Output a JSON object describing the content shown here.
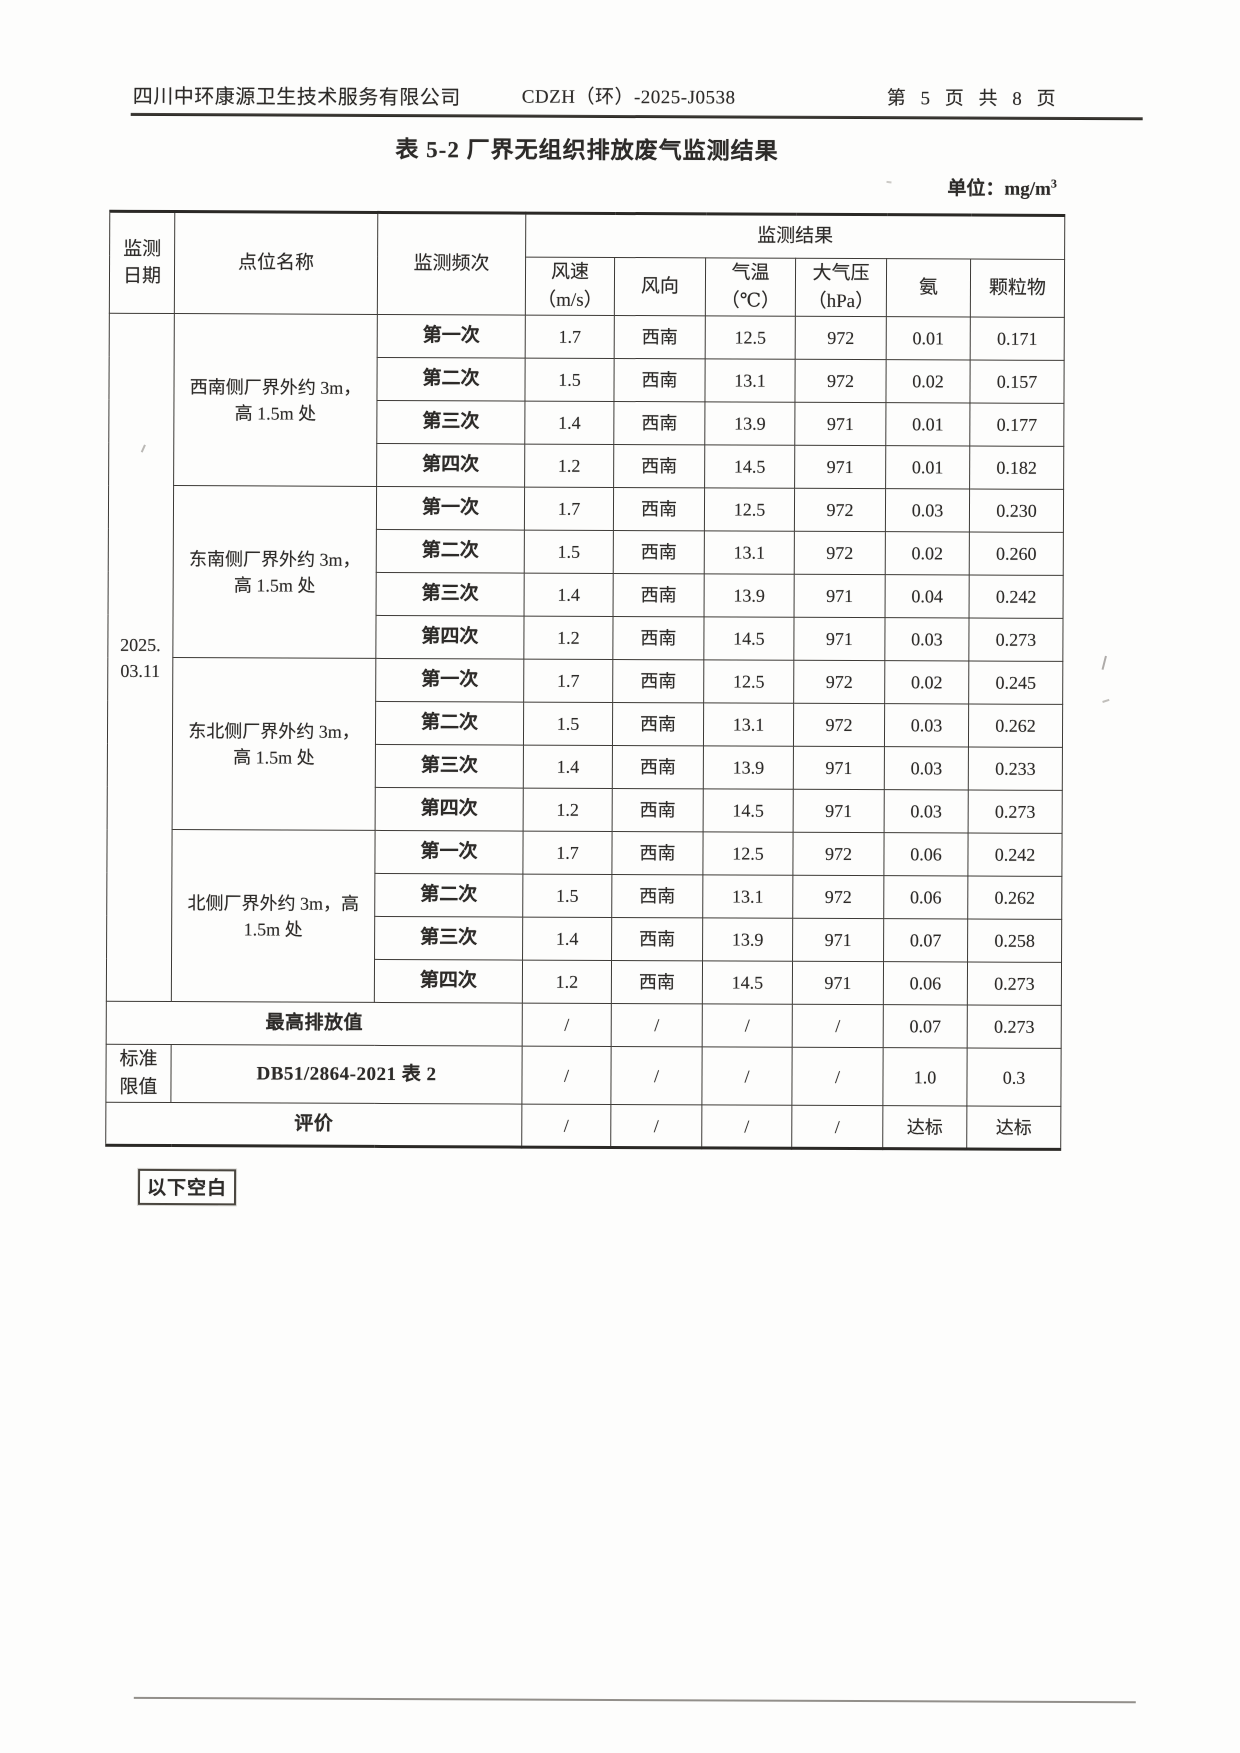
{
  "page": {
    "company": "四川中环康源卫生技术服务有限公司",
    "doc_number": "CDZH（环）-2025-J0538",
    "page_info": "第 5 页 共 8 页"
  },
  "title": "表 5-2 厂界无组织排放废气监测结果",
  "unit": {
    "label": "单位：",
    "value": "mg/m",
    "sup": "3"
  },
  "table": {
    "header": {
      "date": "监测\n日期",
      "point": "点位名称",
      "frequency": "监测频次",
      "result_group": "监测结果",
      "columns": [
        "风速\n（m/s）",
        "风向",
        "气温\n（℃）",
        "大气压\n（hPa）",
        "氨",
        "颗粒物"
      ]
    },
    "date_value": "2025.\n03.11",
    "groups": [
      {
        "point": "西南侧厂界外约 3m，\n高 1.5m 处",
        "rows": [
          {
            "freq": "第一次",
            "values": [
              "1.7",
              "西南",
              "12.5",
              "972",
              "0.01",
              "0.171"
            ]
          },
          {
            "freq": "第二次",
            "values": [
              "1.5",
              "西南",
              "13.1",
              "972",
              "0.02",
              "0.157"
            ]
          },
          {
            "freq": "第三次",
            "values": [
              "1.4",
              "西南",
              "13.9",
              "971",
              "0.01",
              "0.177"
            ]
          },
          {
            "freq": "第四次",
            "values": [
              "1.2",
              "西南",
              "14.5",
              "971",
              "0.01",
              "0.182"
            ]
          }
        ]
      },
      {
        "point": "东南侧厂界外约 3m，\n高 1.5m 处",
        "rows": [
          {
            "freq": "第一次",
            "values": [
              "1.7",
              "西南",
              "12.5",
              "972",
              "0.03",
              "0.230"
            ]
          },
          {
            "freq": "第二次",
            "values": [
              "1.5",
              "西南",
              "13.1",
              "972",
              "0.02",
              "0.260"
            ]
          },
          {
            "freq": "第三次",
            "values": [
              "1.4",
              "西南",
              "13.9",
              "971",
              "0.04",
              "0.242"
            ]
          },
          {
            "freq": "第四次",
            "values": [
              "1.2",
              "西南",
              "14.5",
              "971",
              "0.03",
              "0.273"
            ]
          }
        ]
      },
      {
        "point": "东北侧厂界外约 3m，\n高 1.5m 处",
        "rows": [
          {
            "freq": "第一次",
            "values": [
              "1.7",
              "西南",
              "12.5",
              "972",
              "0.02",
              "0.245"
            ]
          },
          {
            "freq": "第二次",
            "values": [
              "1.5",
              "西南",
              "13.1",
              "972",
              "0.03",
              "0.262"
            ]
          },
          {
            "freq": "第三次",
            "values": [
              "1.4",
              "西南",
              "13.9",
              "971",
              "0.03",
              "0.233"
            ]
          },
          {
            "freq": "第四次",
            "values": [
              "1.2",
              "西南",
              "14.5",
              "971",
              "0.03",
              "0.273"
            ]
          }
        ]
      },
      {
        "point": "北侧厂界外约 3m，高\n1.5m 处",
        "rows": [
          {
            "freq": "第一次",
            "values": [
              "1.7",
              "西南",
              "12.5",
              "972",
              "0.06",
              "0.242"
            ]
          },
          {
            "freq": "第二次",
            "values": [
              "1.5",
              "西南",
              "13.1",
              "972",
              "0.06",
              "0.262"
            ]
          },
          {
            "freq": "第三次",
            "values": [
              "1.4",
              "西南",
              "13.9",
              "971",
              "0.07",
              "0.258"
            ]
          },
          {
            "freq": "第四次",
            "values": [
              "1.2",
              "西南",
              "14.5",
              "971",
              "0.06",
              "0.273"
            ]
          }
        ]
      }
    ],
    "summary_rows": [
      {
        "name": "max-emission",
        "label": "最高排放值",
        "label_colspan": 3,
        "values": [
          "/",
          "/",
          "/",
          "/",
          "0.07",
          "0.273"
        ]
      },
      {
        "name": "standard-limit",
        "side_label": "标准\n限值",
        "label": "DB51/2864-2021 表 2",
        "label_colspan": 2,
        "values": [
          "/",
          "/",
          "/",
          "/",
          "1.0",
          "0.3"
        ]
      },
      {
        "name": "evaluation",
        "label": "评价",
        "label_colspan": 3,
        "values": [
          "/",
          "/",
          "/",
          "/",
          "达标",
          "达标"
        ]
      }
    ]
  },
  "footer_note": "以下空白"
}
